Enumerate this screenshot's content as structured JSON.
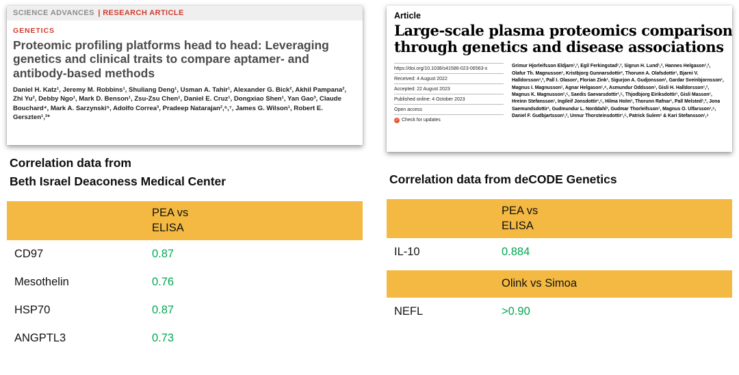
{
  "colors": {
    "table_header": "#f4b942",
    "value_green": "#00a651",
    "accent_red": "#cf3b2f"
  },
  "left": {
    "paper": {
      "masthead_journal": "SCIENCE ADVANCES",
      "masthead_type": "| RESEARCH ARTICLE",
      "section": "GENETICS",
      "title": "Proteomic profiling platforms head to head: Leveraging genetics and clinical traits to compare aptamer- and antibody-based methods",
      "authors": "Daniel H. Katz¹, Jeremy M. Robbins¹, Shuliang Deng¹, Usman A. Tahir¹, Alexander G. Bick², Akhil Pampana², Zhi Yu², Debby Ngo¹, Mark D. Benson¹, Zsu-Zsu Chen¹, Daniel E. Cruz¹, Dongxiao Shen¹, Yan Gao³, Claude Bouchard⁴, Mark A. Sarzynski⁵, Adolfo Correa³, Pradeep Natarajan²,⁶,⁷, James G. Wilson¹, Robert E. Gerszten¹,²*"
    },
    "heading_line1": "Correlation data from",
    "heading_line2": "Beth Israel Deaconess Medical Center",
    "table": {
      "header_line1": "PEA vs",
      "header_line2": "ELISA",
      "rows": [
        {
          "label": "CD97",
          "value": "0.87"
        },
        {
          "label": "Mesothelin",
          "value": "0.76"
        },
        {
          "label": "HSP70",
          "value": "0.87"
        },
        {
          "label": "ANGPTL3",
          "value": "0.73"
        }
      ]
    }
  },
  "right": {
    "paper": {
      "kicker": "Article",
      "title_line1": "Large-scale plasma proteomics comparisons",
      "title_line2": "through genetics and disease associations",
      "meta": {
        "doi": "https://doi.org/10.1038/s41586-023-06563-x",
        "received": "Received: 4 August 2022",
        "accepted": "Accepted: 22 August 2023",
        "published": "Published online: 4 October 2023",
        "open_access": "Open access",
        "check_updates": "Check for updates"
      },
      "authors": "Grimur Hjorleifsson Eldjarn¹,², Egil Ferkingstad¹,², Sigrun H. Lund¹,², Hannes Helgason¹,², Olafur Th. Magnusson¹, Kristbjorg Gunnarsdottir¹, Thorunn A. Olafsdottir¹, Bjarni V. Halldorsson¹,³, Pall I. Olason¹, Florian Zink¹, Sigurjon A. Gudjonsson¹, Gardar Sveinbjornsson¹, Magnus I. Magnusson¹, Agnar Helgason¹,⁴, Asmundur Oddsson¹, Gisli H. Halldorsson¹,², Magnus K. Magnusson¹,⁵, Saedis Saevarsdottir¹,⁵, Thjodbjorg Eiriksdottir¹, Gisli Masson¹, Hreinn Stefansson¹, Ingileif Jonsdottir¹,⁵, Hilma Holm¹, Thorunn Rafnar¹, Pall Melsted¹,², Jona Saemundsdottir¹, Gudmundur L. Norddahl¹, Gudmar Thorleifsson¹, Magnus O. Ulfarsson¹,⁶, Daniel F. Gudbjartsson¹,², Unnur Thorsteinsdottir¹,⁵, Patrick Sulem¹ & Kari Stefansson¹,⁵"
    },
    "heading": "Correlation data from deCODE Genetics",
    "table": {
      "header1_line1": "PEA vs",
      "header1_line2": "ELISA",
      "rows1": [
        {
          "label": "IL-10",
          "value": "0.884"
        }
      ],
      "header2": "Olink vs Simoa",
      "rows2": [
        {
          "label": "NEFL",
          "value": ">0.90"
        }
      ]
    }
  }
}
